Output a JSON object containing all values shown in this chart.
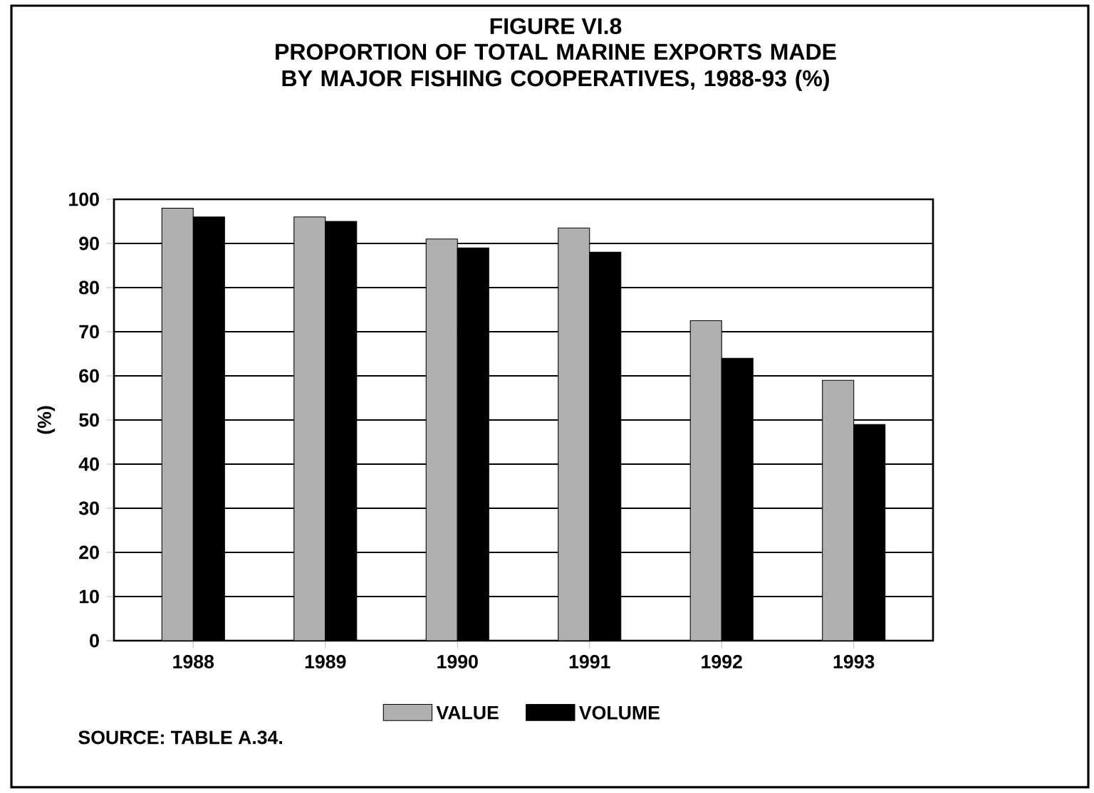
{
  "chart_data": {
    "type": "bar",
    "title": "FIGURE VI.8",
    "subtitle": "PROPORTION OF TOTAL MARINE EXPORTS MADE BY MAJOR FISHING COOPERATIVES, 1988-93 (%)",
    "ylabel": "(%)",
    "categories": [
      "1988",
      "1989",
      "1990",
      "1991",
      "1992",
      "1993"
    ],
    "series": [
      {
        "name": "VALUE",
        "color": "#b0b0b0",
        "values": [
          98,
          96,
          91,
          93.5,
          72.5,
          59
        ]
      },
      {
        "name": "VOLUME",
        "color": "#000000",
        "values": [
          96,
          95,
          89,
          88,
          64,
          49
        ]
      }
    ],
    "ylim": [
      0,
      100
    ],
    "yticks": [
      0,
      10,
      20,
      30,
      40,
      50,
      60,
      70,
      80,
      90,
      100
    ],
    "grid": "y",
    "legend": "bottom",
    "annotations": [
      "SOURCE:  TABLE A.34."
    ]
  }
}
